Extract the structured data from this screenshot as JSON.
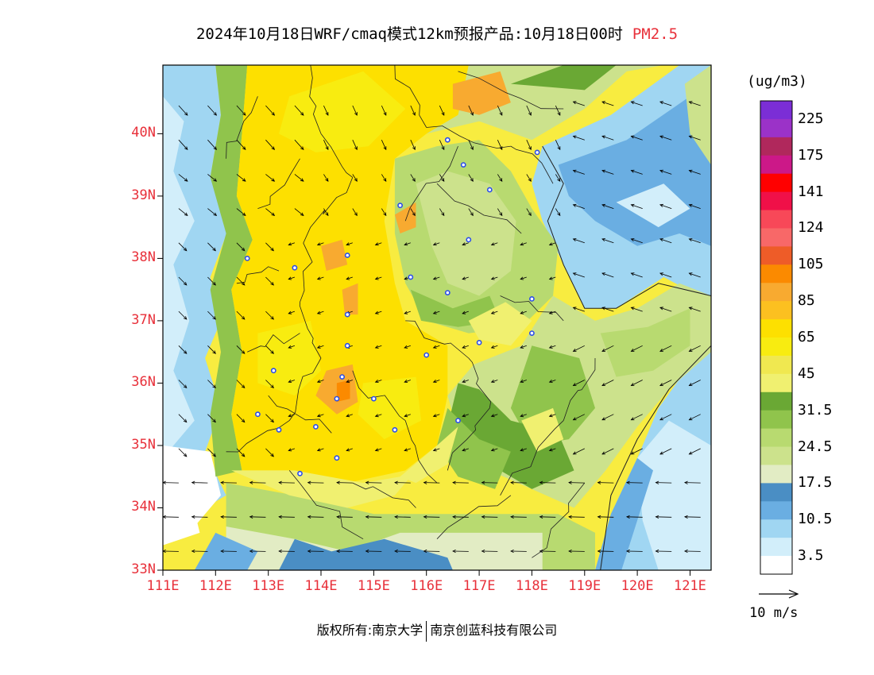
{
  "title": {
    "main": "2024年10月18日WRF/cmaq模式12km预报产品:10月18日00时",
    "pollutant": "PM2.5"
  },
  "axes": {
    "lat_labels": [
      "40N",
      "39N",
      "38N",
      "37N",
      "36N",
      "35N",
      "34N",
      "33N"
    ],
    "lat_values": [
      40,
      39,
      38,
      37,
      36,
      35,
      34,
      33
    ],
    "lon_labels": [
      "111E",
      "112E",
      "113E",
      "114E",
      "115E",
      "116E",
      "117E",
      "118E",
      "119E",
      "120E",
      "121E"
    ],
    "lon_values": [
      111,
      112,
      113,
      114,
      115,
      116,
      117,
      118,
      119,
      120,
      121
    ],
    "lat_range": [
      33,
      41.1
    ],
    "lon_range": [
      111,
      121.4
    ]
  },
  "legend": {
    "unit": "(ug/m3)",
    "labels": [
      "225",
      "175",
      "141",
      "124",
      "105",
      "85",
      "65",
      "45",
      "31.5",
      "24.5",
      "17.5",
      "10.5",
      "3.5"
    ],
    "colors": [
      "#7b2ed6",
      "#9b32c8",
      "#b0285c",
      "#cc1888",
      "#ff0000",
      "#f01048",
      "#f84858",
      "#f86868",
      "#ee5c28",
      "#fb8a00",
      "#f8aa30",
      "#fcc020",
      "#fde000",
      "#f8ec10",
      "#f0e850",
      "#f0f070",
      "#6aa834",
      "#90c44c",
      "#b8da70",
      "#cce28c",
      "#e2ecc4",
      "#4a8ec4",
      "#6aaee2",
      "#a0d6f2",
      "#d2eefa",
      "#ffffff"
    ]
  },
  "wind": {
    "label": "10 m/s",
    "ref_speed": 10
  },
  "footer": {
    "left": "版权所有:南京大学",
    "right": "南京创蓝科技有限公司"
  },
  "chart_data": {
    "type": "heatmap",
    "variable": "PM2.5",
    "unit": "ug/m3",
    "x_range": [
      111,
      121.4
    ],
    "y_range": [
      33,
      41.1
    ],
    "level_breaks": [
      0,
      3.5,
      10.5,
      17.5,
      24.5,
      31.5,
      45,
      65,
      85,
      105,
      124,
      141,
      175,
      225
    ],
    "hotspots": [
      {
        "lon": 114.3,
        "lat": 35.9,
        "value": 80
      },
      {
        "lon": 116.9,
        "lat": 40.7,
        "value": 70
      },
      {
        "lon": 114.1,
        "lat": 38.0,
        "value": 70
      },
      {
        "lon": 114.5,
        "lat": 37.2,
        "value": 70
      }
    ],
    "cities": [
      {
        "lon": 116.4,
        "lat": 39.9
      },
      {
        "lon": 116.7,
        "lat": 39.5
      },
      {
        "lon": 118.1,
        "lat": 39.7
      },
      {
        "lon": 117.2,
        "lat": 39.1
      },
      {
        "lon": 115.5,
        "lat": 38.85
      },
      {
        "lon": 116.8,
        "lat": 38.3
      },
      {
        "lon": 112.6,
        "lat": 38.0
      },
      {
        "lon": 113.5,
        "lat": 37.85
      },
      {
        "lon": 114.5,
        "lat": 38.05
      },
      {
        "lon": 115.7,
        "lat": 37.7
      },
      {
        "lon": 116.4,
        "lat": 37.45
      },
      {
        "lon": 118.0,
        "lat": 37.35
      },
      {
        "lon": 114.5,
        "lat": 37.1
      },
      {
        "lon": 114.5,
        "lat": 36.6
      },
      {
        "lon": 116.0,
        "lat": 36.45
      },
      {
        "lon": 117.0,
        "lat": 36.65
      },
      {
        "lon": 118.0,
        "lat": 36.8
      },
      {
        "lon": 113.1,
        "lat": 36.2
      },
      {
        "lon": 114.4,
        "lat": 36.1
      },
      {
        "lon": 114.3,
        "lat": 35.75
      },
      {
        "lon": 115.0,
        "lat": 35.75
      },
      {
        "lon": 112.8,
        "lat": 35.5
      },
      {
        "lon": 113.2,
        "lat": 35.25
      },
      {
        "lon": 113.9,
        "lat": 35.3
      },
      {
        "lon": 115.4,
        "lat": 35.25
      },
      {
        "lon": 116.6,
        "lat": 35.4
      },
      {
        "lon": 114.3,
        "lat": 34.8
      },
      {
        "lon": 113.6,
        "lat": 34.55
      }
    ]
  }
}
